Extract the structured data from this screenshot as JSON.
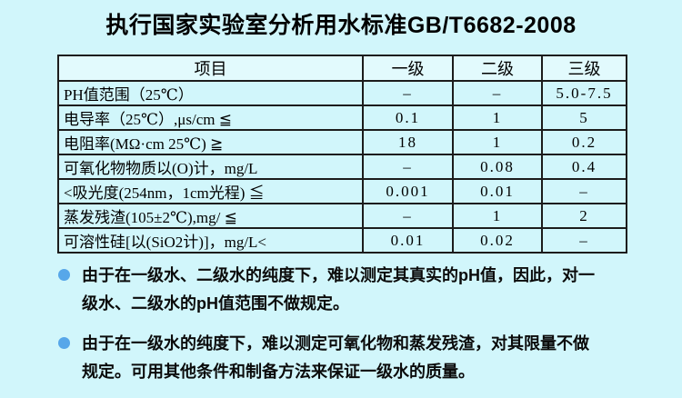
{
  "page": {
    "background_color": "#d1f6fb",
    "bullet_color": "#57a7e9",
    "border_color": "#1c1c1c"
  },
  "title": "执行国家实验室分析用水标准GB/T6682-2008",
  "table": {
    "columns": [
      "项目",
      "一级",
      "二级",
      "三级"
    ],
    "rows": [
      {
        "item": "PH值范围（25℃）",
        "grade1": "–",
        "grade2": "–",
        "grade3": "5.0-7.5"
      },
      {
        "item": "电导率（25℃）,μs/cm ≦",
        "grade1": "0.1",
        "grade2": "1",
        "grade3": "5"
      },
      {
        "item": "电阻率(MΩ·cm 25℃) ≧",
        "grade1": "18",
        "grade2": "1",
        "grade3": "0.2"
      },
      {
        "item": "可氧化物物质以(O)计，mg/L",
        "grade1": "–",
        "grade2": "0.08",
        "grade3": "0.4"
      },
      {
        "item": "<吸光度(254nm，1cm光程) ≦",
        "grade1": "0.001",
        "grade2": "0.01",
        "grade3": "–"
      },
      {
        "item": "蒸发残渣(105±2℃),mg/ ≦",
        "grade1": "–",
        "grade2": "1",
        "grade3": "2"
      },
      {
        "item": "可溶性硅[以(SiO2计)]，mg/L<",
        "grade1": "0.01",
        "grade2": "0.02",
        "grade3": "–"
      }
    ]
  },
  "notes": [
    "由于在一级水、二级水的纯度下，难以测定其真实的pH值，因此，对一级水、二级水的pH值范围不做规定。",
    "由于在一级水的纯度下，难以测定可氧化物和蒸发残渣，对其限量不做规定。可用其他条件和制备方法来保证一级水的质量。"
  ]
}
